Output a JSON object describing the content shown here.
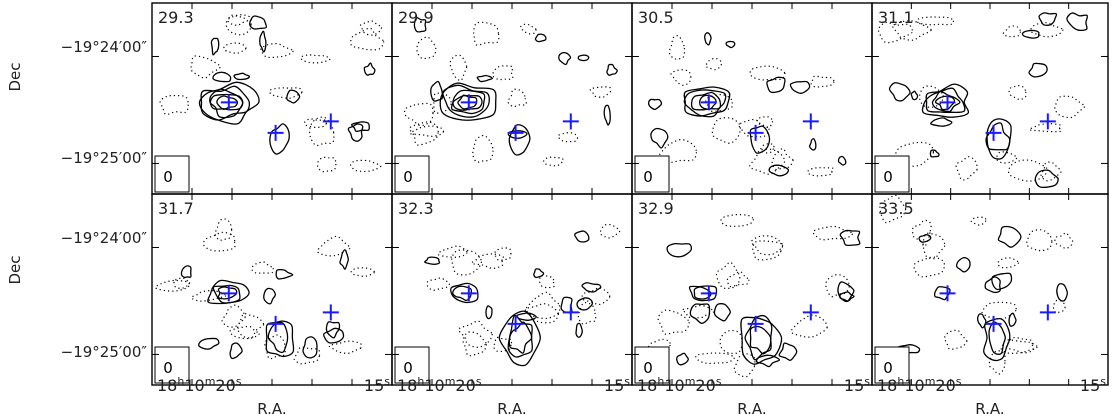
{
  "chart_data": {
    "type": "contour",
    "layout": {
      "rows": 2,
      "cols": 4
    },
    "ylabel": "Dec",
    "xlabel": "R.A.",
    "yticks": [
      {
        "label": "−19°24′00″",
        "dec_offset": 1.0
      },
      {
        "label": "−19°25′00″",
        "dec_offset": 0.0
      }
    ],
    "xtick_left": {
      "pre": "18",
      "h": "h",
      "mid1": "10",
      "m": "m",
      "mid2": "20",
      "s": "s"
    },
    "xtick_right": {
      "val": "15",
      "s": "s"
    },
    "panels": [
      {
        "velocity": "29.3"
      },
      {
        "velocity": "29.9"
      },
      {
        "velocity": "30.5"
      },
      {
        "velocity": "31.1"
      },
      {
        "velocity": "31.7"
      },
      {
        "velocity": "32.3"
      },
      {
        "velocity": "32.9"
      },
      {
        "velocity": "33.5"
      }
    ],
    "markers": [
      {
        "u": 0.32,
        "v": 0.52
      },
      {
        "u": 0.515,
        "v": 0.68
      },
      {
        "u": 0.745,
        "v": 0.62
      }
    ],
    "beam_symbol": "0",
    "contour_color": "#000000",
    "marker_color": "#1a1aff"
  }
}
